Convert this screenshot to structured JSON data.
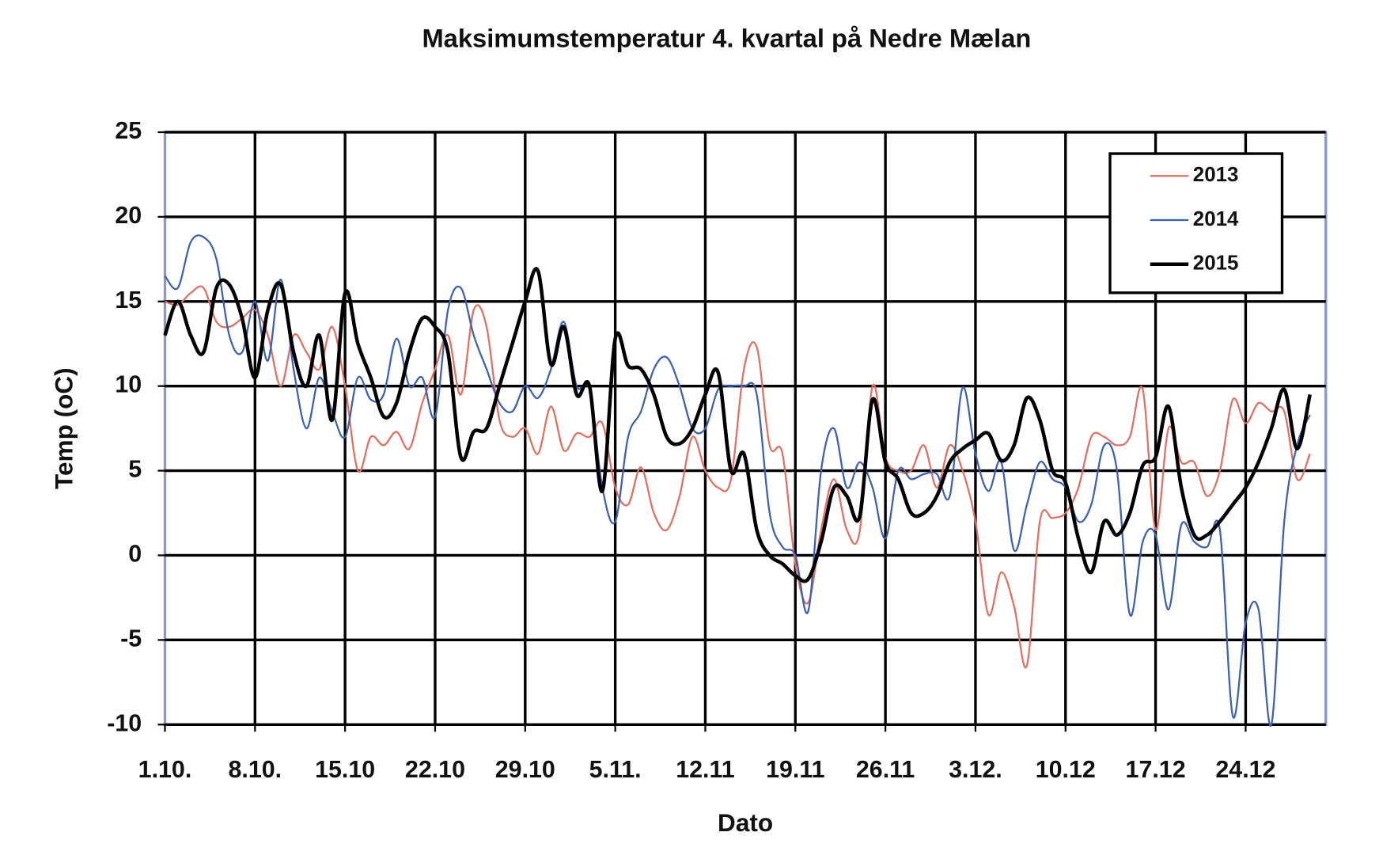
{
  "chart_data": {
    "type": "line",
    "title": "Maksimumstemperatur 4. kvartal på Nedre Mælan",
    "xlabel": "Dato",
    "ylabel": "Temp (oC)",
    "categories": [
      "1.10.",
      null,
      null,
      null,
      null,
      null,
      null,
      "8.10.",
      null,
      null,
      null,
      null,
      null,
      null,
      "15.10",
      null,
      null,
      null,
      null,
      null,
      null,
      "22.10",
      null,
      null,
      null,
      null,
      null,
      null,
      "29.10",
      null,
      null,
      null,
      null,
      null,
      null,
      "5.11.",
      null,
      null,
      null,
      null,
      null,
      null,
      "12.11",
      null,
      null,
      null,
      null,
      null,
      null,
      "19.11",
      null,
      null,
      null,
      null,
      null,
      null,
      "26.11",
      null,
      null,
      null,
      null,
      null,
      null,
      "3.12.",
      null,
      null,
      null,
      null,
      null,
      null,
      "10.12",
      null,
      null,
      null,
      null,
      null,
      null,
      "17.12",
      null,
      null,
      null,
      null,
      null,
      null,
      "24.12",
      null,
      null,
      null,
      null,
      null
    ],
    "series": [
      {
        "name": "2013",
        "color": "#e07060",
        "width": 2,
        "values": [
          15,
          14.8,
          15.5,
          15.8,
          13.8,
          13.5,
          14,
          14.5,
          13,
          10,
          13,
          12,
          11,
          13.5,
          10,
          5,
          7,
          6.5,
          7.3,
          6.3,
          9,
          11,
          13,
          9.5,
          14.5,
          13.5,
          8,
          7,
          7.5,
          6,
          8.8,
          6.2,
          7.2,
          7,
          7.8,
          4,
          3,
          5.2,
          2.5,
          1.5,
          3.5,
          7,
          5,
          4,
          4.5,
          11,
          12.3,
          6.5,
          6,
          -0.5,
          -2.8,
          1.5,
          4.5,
          1.5,
          1.4,
          10,
          5.8,
          5,
          5,
          6.5,
          4,
          6.5,
          5,
          2,
          -3.5,
          -1,
          -3,
          -6.5,
          2,
          2.2,
          2.5,
          4,
          7,
          7,
          6.5,
          7,
          9.8,
          1.5,
          7.5,
          5.5,
          5.5,
          3.5,
          5,
          9.2,
          7.8,
          9,
          8.5,
          8.5,
          4.5,
          6
        ]
      },
      {
        "name": "2014",
        "color": "#3a62b0",
        "width": 2,
        "values": [
          16.5,
          15.8,
          18.5,
          18.8,
          17.5,
          13,
          12,
          15,
          11.5,
          16.3,
          11,
          7.5,
          10.5,
          8.5,
          7,
          10.5,
          9.2,
          9.5,
          12.8,
          10,
          10.5,
          8.2,
          14.5,
          15.8,
          13,
          11,
          9,
          8.5,
          10,
          9.3,
          11,
          13.8,
          10,
          9.8,
          4,
          2,
          7,
          8.5,
          11,
          11.7,
          10,
          7.5,
          7.5,
          9.8,
          10,
          10,
          9.5,
          2.5,
          0.5,
          0,
          -3.3,
          5,
          7.5,
          4,
          5.5,
          4,
          1,
          5,
          4.5,
          4.8,
          4.8,
          3.5,
          9.9,
          6,
          3.8,
          5.5,
          0.3,
          3,
          5.5,
          4.5,
          4,
          2,
          3,
          6.5,
          5,
          -3.5,
          0.8,
          1.2,
          -3.2,
          1.8,
          0.8,
          0.5,
          1.5,
          -9.5,
          -4,
          -3.2,
          -10,
          2,
          6.5,
          8.3
        ]
      },
      {
        "name": "2015",
        "color": "#000000",
        "width": 4,
        "values": [
          13,
          15,
          13,
          12,
          15.8,
          16,
          14,
          10.5,
          14.5,
          16,
          12,
          10,
          13,
          8,
          15.5,
          12.5,
          10.5,
          8.2,
          9,
          12,
          14,
          13.5,
          12,
          5.8,
          7.3,
          7.5,
          10,
          12.5,
          15,
          16.8,
          11.3,
          13.5,
          9.5,
          10,
          3.8,
          12.8,
          11.2,
          11,
          9.5,
          7,
          6.6,
          7.5,
          9.5,
          10.8,
          5,
          6,
          1.5,
          0,
          -0.5,
          -1.2,
          -1.4,
          0.8,
          4,
          3.5,
          2.3,
          9.2,
          5.5,
          4.5,
          2.5,
          2.5,
          3.5,
          5.5,
          6.3,
          6.8,
          7.2,
          5.6,
          6.5,
          9.3,
          8,
          5,
          4.3,
          1,
          -1,
          2,
          1.2,
          2.5,
          5.3,
          5.8,
          8.8,
          4,
          1.2,
          1.2,
          2,
          3,
          4,
          5.5,
          7.5,
          9.8,
          6.3,
          9.5
        ]
      }
    ],
    "ylim": [
      -10,
      25
    ],
    "yticks": [
      -10,
      -5,
      0,
      5,
      10,
      15,
      20,
      25
    ],
    "grid": true,
    "legend": "upper right"
  }
}
